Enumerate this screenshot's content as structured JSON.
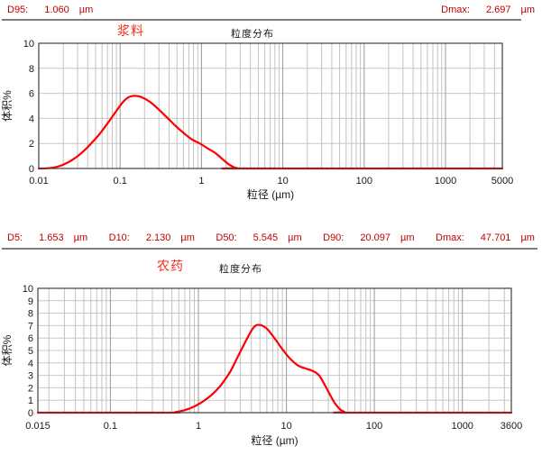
{
  "colors": {
    "header_text": "#c00000",
    "sample_title_red": "#fb2a1a",
    "text": "#1a1a1a",
    "curve": "#ff0000",
    "axis": "#404040",
    "grid_minor": "#c3c3c3",
    "grid_major": "#9a9a9a",
    "grid_h": "#c8c8c8",
    "separator": "#7f7f7f"
  },
  "header_top": {
    "items": [
      {
        "label": "D95:",
        "value": "1.060",
        "unit": "µm"
      },
      {
        "label": "Dmax:",
        "value": "2.697",
        "unit": "µm"
      }
    ]
  },
  "header_mid": {
    "items": [
      {
        "label": "D5:",
        "value": "1.653",
        "unit": "µm"
      },
      {
        "label": "D10:",
        "value": "2.130",
        "unit": "µm"
      },
      {
        "label": "D50:",
        "value": "5.545",
        "unit": "µm"
      },
      {
        "label": "D90:",
        "value": "20.097",
        "unit": "µm"
      },
      {
        "label": "Dmax:",
        "value": "47.701",
        "unit": "µm"
      }
    ]
  },
  "chart_data": [
    {
      "type": "line",
      "sample_name": "浆料",
      "title": "粒度分布",
      "xlabel": "粒径 (µm)",
      "ylabel": "体积%",
      "x_scale": "log",
      "xlim": [
        0.01,
        5000
      ],
      "ylim": [
        0,
        10
      ],
      "y_tick_step": 2,
      "x_ticks": [
        0.01,
        0.1,
        1,
        10,
        100,
        1000,
        5000
      ],
      "x_tick_labels": [
        "0.01",
        "0.1",
        "1",
        "10",
        "100",
        "1000",
        "5000"
      ],
      "grid": true,
      "legend": "none",
      "series": [
        {
          "name": "浆料",
          "color": "#ff0000",
          "x": [
            0.01,
            0.013,
            0.016,
            0.02,
            0.026,
            0.033,
            0.042,
            0.055,
            0.07,
            0.09,
            0.11,
            0.13,
            0.155,
            0.19,
            0.24,
            0.3,
            0.38,
            0.48,
            0.6,
            0.75,
            0.95,
            1.2,
            1.5,
            1.85,
            2.2,
            2.55,
            2.8,
            3.2,
            5000
          ],
          "y": [
            0,
            0.02,
            0.1,
            0.3,
            0.7,
            1.2,
            1.85,
            2.7,
            3.6,
            4.6,
            5.35,
            5.72,
            5.8,
            5.65,
            5.25,
            4.7,
            4.05,
            3.4,
            2.85,
            2.35,
            2.0,
            1.6,
            1.2,
            0.7,
            0.3,
            0.08,
            0.02,
            0,
            0
          ]
        }
      ]
    },
    {
      "type": "line",
      "sample_name": "农药",
      "title": "粒度分布",
      "xlabel": "粒径 (µm)",
      "ylabel": "体积%",
      "x_scale": "log",
      "xlim": [
        0.015,
        3600
      ],
      "ylim": [
        0,
        10
      ],
      "y_tick_step": 1,
      "x_ticks": [
        0.015,
        0.1,
        1,
        10,
        100,
        1000,
        3600
      ],
      "x_tick_labels": [
        "0.015",
        "0.1",
        "1",
        "10",
        "100",
        "1000",
        "3600"
      ],
      "grid": true,
      "legend": "none",
      "series": [
        {
          "name": "农药",
          "color": "#ff0000",
          "x": [
            0.015,
            0.45,
            0.55,
            0.7,
            0.9,
            1.1,
            1.4,
            1.8,
            2.3,
            2.9,
            3.6,
            4.3,
            5.0,
            6.0,
            7.3,
            9.0,
            11,
            13.5,
            16.5,
            20,
            23.5,
            27,
            31,
            36,
            41,
            46,
            48,
            3600
          ],
          "y": [
            0,
            0,
            0.05,
            0.2,
            0.5,
            0.85,
            1.4,
            2.2,
            3.3,
            4.7,
            6.0,
            6.9,
            7.05,
            6.75,
            6.0,
            5.1,
            4.35,
            3.8,
            3.55,
            3.35,
            3.0,
            2.3,
            1.5,
            0.7,
            0.25,
            0.05,
            0,
            0
          ]
        }
      ]
    }
  ]
}
